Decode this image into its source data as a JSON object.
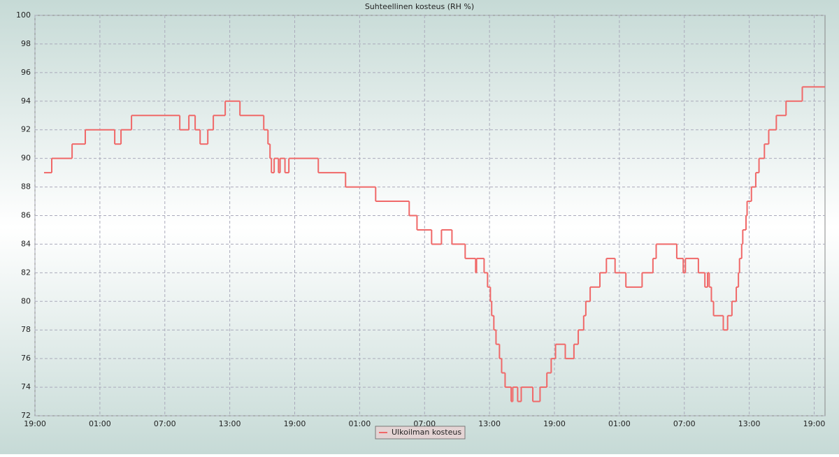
{
  "chart_data": {
    "type": "step-line",
    "title": "Suhteellinen kosteus (RH %)",
    "x": [
      0.84,
      1.55,
      3.43,
      4.65,
      7.37,
      7.95,
      8.92,
      13.38,
      14.22,
      14.8,
      15.26,
      15.97,
      16.48,
      17.58,
      18.94,
      21.14,
      21.53,
      21.72,
      21.85,
      22.1,
      22.5,
      22.65,
      23.1,
      23.46,
      26.18,
      28.7,
      31.48,
      34.58,
      35.3,
      36.65,
      37.56,
      38.53,
      39.75,
      40.72,
      40.8,
      41.5,
      41.82,
      42.08,
      42.2,
      42.4,
      42.6,
      42.92,
      43.12,
      43.44,
      44.0,
      44.15,
      44.6,
      44.93,
      46.0,
      46.67,
      47.3,
      47.7,
      48.1,
      49.0,
      49.8,
      50.2,
      50.7,
      50.9,
      51.3,
      52.2,
      52.8,
      53.6,
      54.6,
      56.1,
      57.1,
      57.4,
      59.3,
      59.9,
      60.1,
      61.3,
      61.9,
      62.15,
      62.3,
      62.5,
      62.7,
      63.6,
      64.0,
      64.4,
      64.8,
      65.0,
      65.1,
      65.3,
      65.4,
      65.7,
      65.8,
      66.2,
      66.6,
      66.9,
      67.4,
      67.8,
      68.5,
      69.4,
      70.9
    ],
    "series": [
      {
        "name": "Ulkoilman kosteus",
        "color": "#f06868",
        "values": [
          89,
          90,
          91,
          92,
          91,
          92,
          93,
          92,
          93,
          92,
          91,
          92,
          93,
          94,
          93,
          92,
          91,
          90,
          89,
          90,
          89,
          90,
          89,
          90,
          89,
          88,
          87,
          86,
          85,
          84,
          85,
          84,
          83,
          82,
          83,
          82,
          81,
          80,
          79,
          78,
          77,
          76,
          75,
          74,
          73,
          74,
          73,
          74,
          73,
          74,
          75,
          76,
          77,
          76,
          77,
          78,
          79,
          80,
          81,
          82,
          83,
          82,
          81,
          82,
          83,
          84,
          83,
          82,
          83,
          82,
          81,
          82,
          81,
          80,
          79,
          78,
          79,
          80,
          81,
          82,
          83,
          84,
          85,
          86,
          87,
          88,
          89,
          90,
          91,
          92,
          93,
          94,
          95
        ]
      }
    ],
    "xlim": [
      0,
      73
    ],
    "xticks": [
      {
        "value": 0,
        "label": "19:00"
      },
      {
        "value": 6,
        "label": "01:00"
      },
      {
        "value": 12,
        "label": "07:00"
      },
      {
        "value": 18,
        "label": "13:00"
      },
      {
        "value": 24,
        "label": "19:00"
      },
      {
        "value": 30,
        "label": "01:00"
      },
      {
        "value": 36,
        "label": "07:00"
      },
      {
        "value": 42,
        "label": "13:00"
      },
      {
        "value": 48,
        "label": "19:00"
      },
      {
        "value": 54,
        "label": "01:00"
      },
      {
        "value": 60,
        "label": "07:00"
      },
      {
        "value": 66,
        "label": "13:00"
      },
      {
        "value": 72,
        "label": "19:00"
      }
    ],
    "ylim": [
      72,
      100
    ],
    "yticks": [
      72,
      74,
      76,
      78,
      80,
      82,
      84,
      86,
      88,
      90,
      92,
      94,
      96,
      98,
      100
    ],
    "grid": true,
    "legend": "bottom"
  }
}
